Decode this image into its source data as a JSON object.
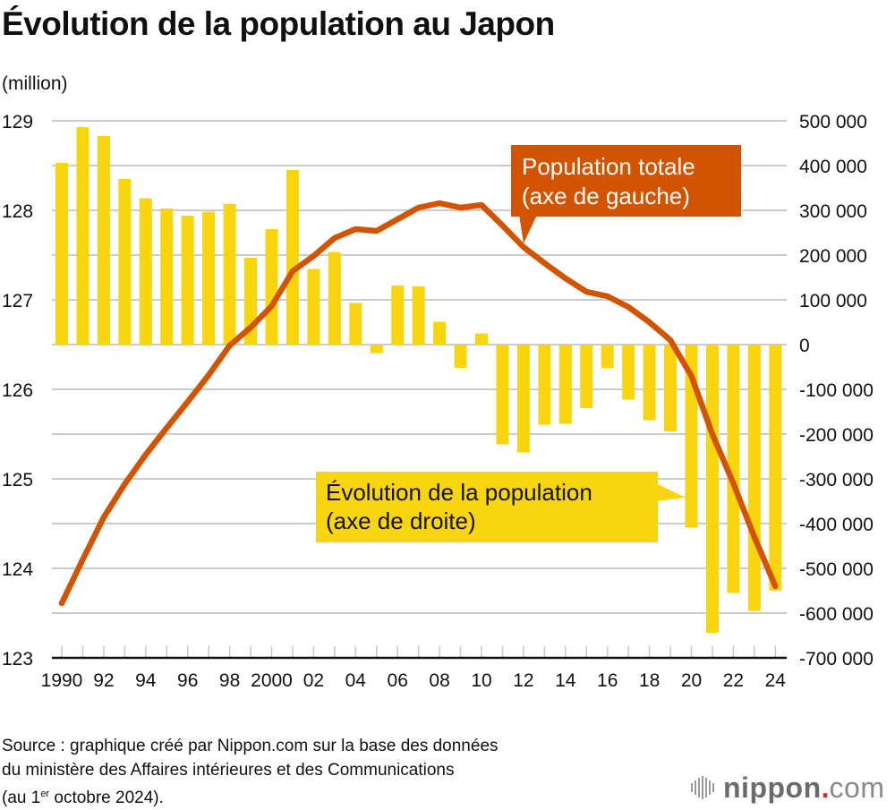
{
  "chart_data": {
    "type": "bar+line",
    "title": "Évolution de la population au Japon",
    "left_axis": {
      "unit_label": "(million)",
      "range": [
        123,
        129
      ],
      "ticks": [
        "129",
        "128",
        "127",
        "126",
        "125",
        "124",
        "123"
      ],
      "tick_values": [
        129,
        128,
        127,
        126,
        125,
        124,
        123
      ]
    },
    "right_axis": {
      "range": [
        -700000,
        500000
      ],
      "ticks": [
        "500 000",
        "400 000",
        "300 000",
        "200 000",
        "100 000",
        "0",
        "-100 000",
        "-200 000",
        "-300 000",
        "-400 000",
        "-500 000",
        "-600 000",
        "-700 000"
      ],
      "tick_values": [
        500000,
        400000,
        300000,
        200000,
        100000,
        0,
        -100000,
        -200000,
        -300000,
        -400000,
        -500000,
        -600000,
        -700000
      ]
    },
    "x": [
      1990,
      1991,
      1992,
      1993,
      1994,
      1995,
      1996,
      1997,
      1998,
      1999,
      2000,
      2001,
      2002,
      2003,
      2004,
      2005,
      2006,
      2007,
      2008,
      2009,
      2010,
      2011,
      2012,
      2013,
      2014,
      2015,
      2016,
      2017,
      2018,
      2019,
      2020,
      2021,
      2022,
      2023,
      2024
    ],
    "x_tick_labels": [
      {
        "year": 1990,
        "label": "1990"
      },
      {
        "year": 1992,
        "label": "92"
      },
      {
        "year": 1994,
        "label": "94"
      },
      {
        "year": 1996,
        "label": "96"
      },
      {
        "year": 1998,
        "label": "98"
      },
      {
        "year": 2000,
        "label": "2000"
      },
      {
        "year": 2002,
        "label": "02"
      },
      {
        "year": 2004,
        "label": "04"
      },
      {
        "year": 2006,
        "label": "06"
      },
      {
        "year": 2008,
        "label": "08"
      },
      {
        "year": 2010,
        "label": "10"
      },
      {
        "year": 2012,
        "label": "12"
      },
      {
        "year": 2014,
        "label": "14"
      },
      {
        "year": 2016,
        "label": "16"
      },
      {
        "year": 2018,
        "label": "18"
      },
      {
        "year": 2020,
        "label": "20"
      },
      {
        "year": 2022,
        "label": "22"
      },
      {
        "year": 2024,
        "label": "24"
      }
    ],
    "series": [
      {
        "name": "Évolution de la population (axe de droite)",
        "type": "bar",
        "axis": "right",
        "color": "#F9D510",
        "values": [
          406000,
          486000,
          466000,
          370000,
          327000,
          304000,
          288000,
          297000,
          314000,
          194000,
          258000,
          390000,
          169000,
          207000,
          93000,
          -19000,
          132000,
          130000,
          51000,
          -52000,
          25000,
          -223000,
          -241000,
          -179000,
          -177000,
          -142000,
          -53000,
          -123000,
          -169000,
          -194000,
          -409000,
          -644000,
          -555000,
          -595000,
          -550000
        ]
      },
      {
        "name": "Population totale (axe de gauche)",
        "type": "line",
        "axis": "left",
        "color": "#D35400",
        "values": [
          123.61,
          124.1,
          124.57,
          124.94,
          125.27,
          125.57,
          125.86,
          126.16,
          126.49,
          126.69,
          126.93,
          127.32,
          127.49,
          127.69,
          127.79,
          127.77,
          127.9,
          128.03,
          128.08,
          128.03,
          128.06,
          127.83,
          127.59,
          127.41,
          127.24,
          127.09,
          127.04,
          126.92,
          126.75,
          126.55,
          126.15,
          125.5,
          124.95,
          124.35,
          123.8
        ]
      }
    ],
    "annotations": [
      {
        "id": "line",
        "lines": [
          "Population totale",
          "(axe de gauche)"
        ],
        "bg": "#D35400",
        "text_color": "#ffffff"
      },
      {
        "id": "bars",
        "lines": [
          "Évolution de la population",
          "(axe de droite)"
        ],
        "bg": "#F9D510",
        "text_color": "#111111"
      }
    ],
    "grid": true,
    "legend": "inline-callouts"
  },
  "footer": {
    "source_line1": "Source : graphique créé par Nippon.com sur la base des données",
    "source_line2": "du ministère des Affaires intérieures et des Communications",
    "source_line3_pre": "(au 1",
    "source_line3_sup": "er",
    "source_line3_post": " octobre 2024)."
  },
  "logo": {
    "name": "nippon",
    "dot": ".",
    "suffix": "com"
  }
}
